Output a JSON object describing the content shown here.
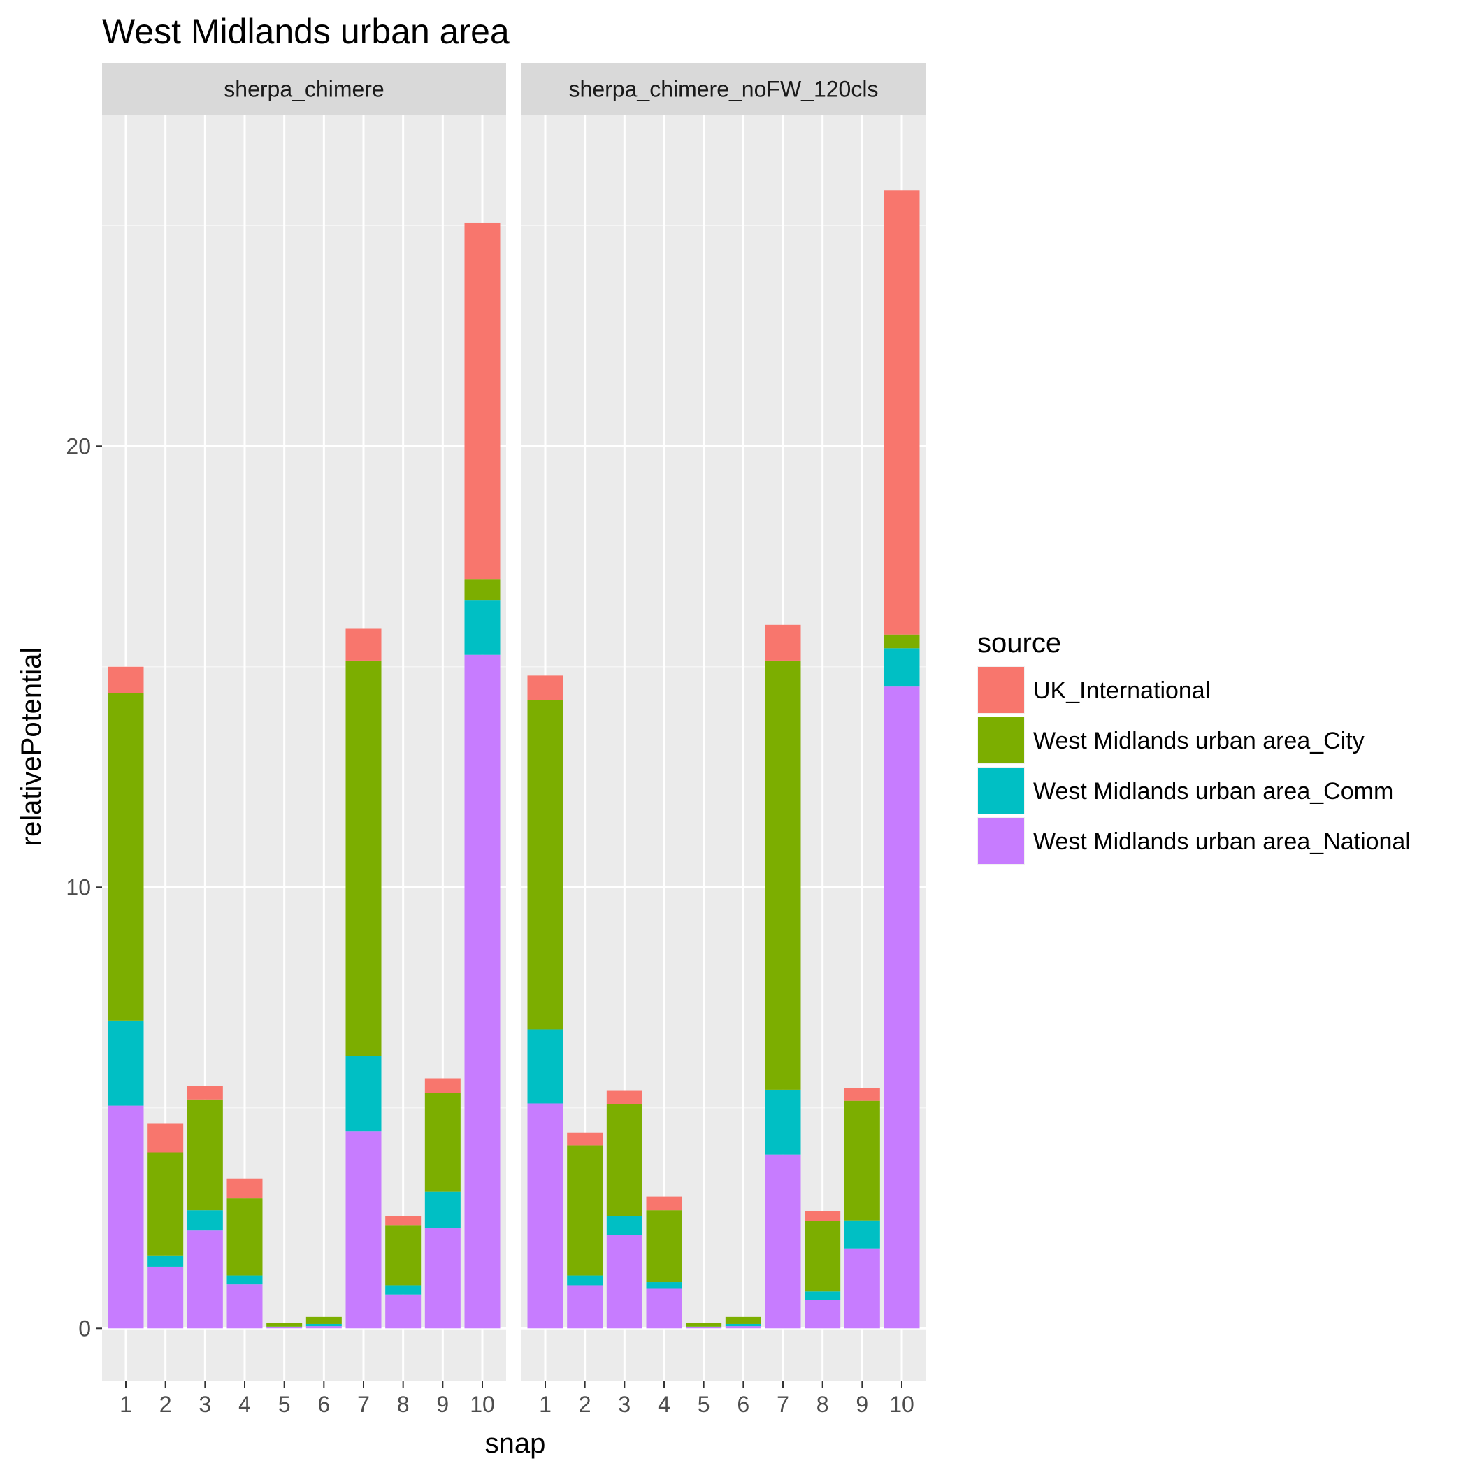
{
  "chart_data": {
    "type": "bar",
    "stacked": true,
    "title": "West Midlands urban area",
    "xlabel": "snap",
    "ylabel": "relativePotential",
    "ylim": [
      -1.2,
      27.5
    ],
    "yticks": [
      0,
      10,
      20
    ],
    "categories": [
      "1",
      "2",
      "3",
      "4",
      "5",
      "6",
      "7",
      "8",
      "9",
      "10"
    ],
    "legend": {
      "title": "source",
      "placement": "right",
      "entries": [
        {
          "name": "UK_International",
          "color": "#F8766D"
        },
        {
          "name": "West Midlands urban area_City",
          "color": "#7CAE00"
        },
        {
          "name": "West Midlands urban area_Comm",
          "color": "#00BFC4"
        },
        {
          "name": "West Midlands urban area_National",
          "color": "#C77CFF"
        }
      ]
    },
    "stack_order": [
      "West Midlands urban area_National",
      "West Midlands urban area_Comm",
      "West Midlands urban area_City",
      "UK_International"
    ],
    "panels": [
      {
        "name": "sherpa_chimere",
        "series": [
          {
            "name": "West Midlands urban area_National",
            "values": [
              5.05,
              1.4,
              2.22,
              1.0,
              0.02,
              0.05,
              4.47,
              0.77,
              2.27,
              15.27
            ]
          },
          {
            "name": "West Midlands urban area_Comm",
            "values": [
              1.93,
              0.24,
              0.46,
              0.2,
              0.02,
              0.05,
              1.7,
              0.21,
              0.83,
              1.23
            ]
          },
          {
            "name": "West Midlands urban area_City",
            "values": [
              7.42,
              2.35,
              2.51,
              1.75,
              0.08,
              0.16,
              8.97,
              1.35,
              2.24,
              0.49
            ]
          },
          {
            "name": "UK_International",
            "values": [
              0.6,
              0.65,
              0.3,
              0.45,
              0.0,
              0.0,
              0.72,
              0.22,
              0.33,
              8.07
            ]
          }
        ]
      },
      {
        "name": "sherpa_chimere_noFW_120cls",
        "series": [
          {
            "name": "West Midlands urban area_National",
            "values": [
              5.1,
              0.98,
              2.12,
              0.9,
              0.02,
              0.05,
              3.94,
              0.64,
              1.8,
              14.55
            ]
          },
          {
            "name": "West Midlands urban area_Comm",
            "values": [
              1.68,
              0.22,
              0.42,
              0.15,
              0.02,
              0.05,
              1.47,
              0.2,
              0.65,
              0.87
            ]
          },
          {
            "name": "West Midlands urban area_City",
            "values": [
              7.47,
              2.95,
              2.54,
              1.63,
              0.08,
              0.16,
              9.73,
              1.6,
              2.71,
              0.31
            ]
          },
          {
            "name": "UK_International",
            "values": [
              0.55,
              0.28,
              0.32,
              0.31,
              0.0,
              0.0,
              0.81,
              0.22,
              0.29,
              10.07
            ]
          }
        ]
      }
    ]
  }
}
